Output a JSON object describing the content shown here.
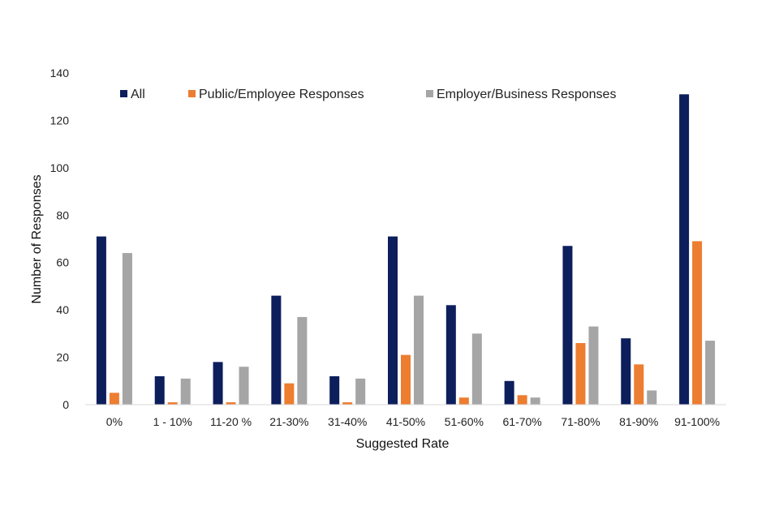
{
  "chart_data": {
    "type": "bar",
    "title": "",
    "xlabel": "Suggested Rate",
    "ylabel": "Number of Responses",
    "ylim": [
      0,
      140
    ],
    "yticks": [
      0,
      20,
      40,
      60,
      80,
      100,
      120,
      140
    ],
    "grid": false,
    "legend_position": "top",
    "categories": [
      "0%",
      "1 - 10%",
      "11-20 %",
      "21-30%",
      "31-40%",
      "41-50%",
      "51-60%",
      "61-70%",
      "71-80%",
      "81-90%",
      "91-100%"
    ],
    "series": [
      {
        "name": "All",
        "color": "#0d1e5c",
        "values": [
          71,
          12,
          18,
          46,
          12,
          71,
          42,
          10,
          67,
          28,
          131
        ]
      },
      {
        "name": "Public/Employee Responses",
        "color": "#ed7d31",
        "values": [
          5,
          1,
          1,
          9,
          1,
          21,
          3,
          4,
          26,
          17,
          69
        ]
      },
      {
        "name": "Employer/Business Responses",
        "color": "#a5a5a5",
        "values": [
          64,
          11,
          16,
          37,
          11,
          46,
          30,
          3,
          33,
          6,
          27
        ]
      }
    ]
  }
}
